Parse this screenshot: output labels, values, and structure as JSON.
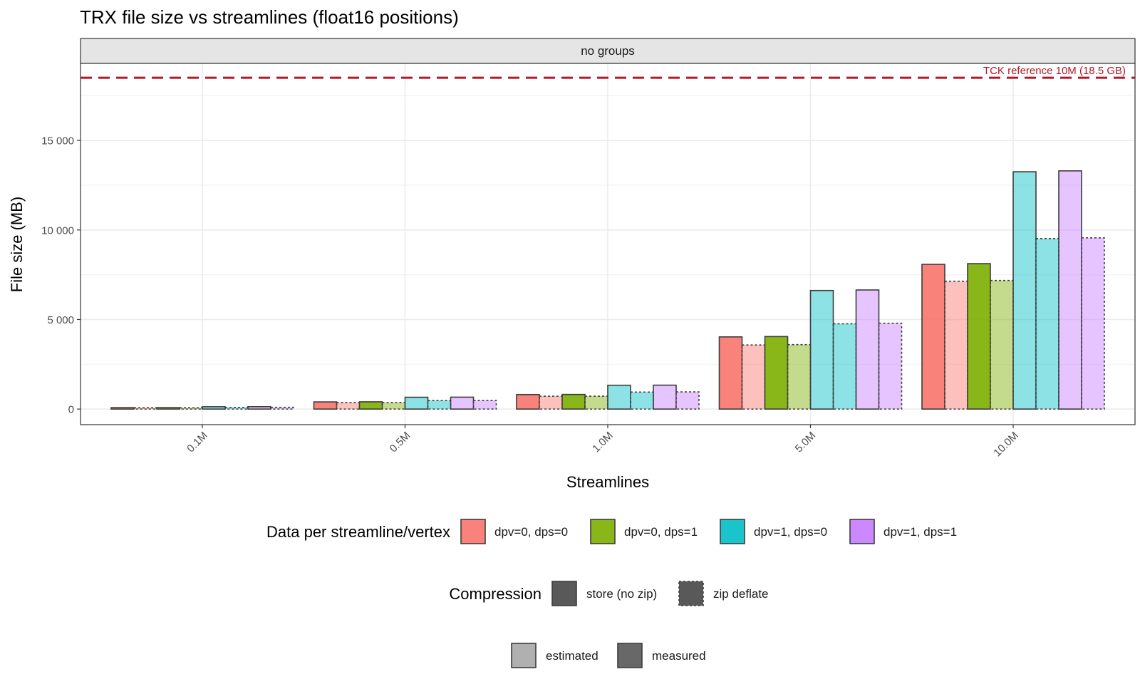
{
  "chart_data": {
    "type": "bar",
    "title": "TRX file size vs streamlines (float16 positions)",
    "facet_label": "no groups",
    "xlabel": "Streamlines",
    "ylabel": "File size (MB)",
    "categories": [
      "0.1M",
      "0.5M",
      "1.0M",
      "5.0M",
      "10.0M"
    ],
    "ylim": [
      -870,
      19300
    ],
    "y_ticks": [
      {
        "value": 0,
        "label": "0"
      },
      {
        "value": 5000,
        "label": "5 000"
      },
      {
        "value": 10000,
        "label": "10 000"
      },
      {
        "value": 15000,
        "label": "15 000"
      }
    ],
    "grid": true,
    "reference_line": {
      "value": 18500,
      "label": "TCK reference 10M (18.5 GB)",
      "color": "#b2182b"
    },
    "series": [
      {
        "fill": "dpv=0, dps=0",
        "compression": "store (no zip)",
        "status": "measured",
        "values": [
          80,
          400,
          810,
          4030,
          8080
        ]
      },
      {
        "fill": "dpv=0, dps=0",
        "compression": "zip deflate",
        "status": "estimated",
        "values": [
          72,
          360,
          720,
          3580,
          7140
        ]
      },
      {
        "fill": "dpv=0, dps=1",
        "compression": "store (no zip)",
        "status": "measured",
        "values": [
          81,
          405,
          815,
          4050,
          8120
        ]
      },
      {
        "fill": "dpv=0, dps=1",
        "compression": "zip deflate",
        "status": "estimated",
        "values": [
          72,
          360,
          720,
          3600,
          7180
        ]
      },
      {
        "fill": "dpv=1, dps=0",
        "compression": "store (no zip)",
        "status": "estimated",
        "values": [
          130,
          660,
          1330,
          6620,
          13250
        ]
      },
      {
        "fill": "dpv=1, dps=0",
        "compression": "zip deflate",
        "status": "estimated",
        "values": [
          95,
          475,
          950,
          4760,
          9520
        ]
      },
      {
        "fill": "dpv=1, dps=1",
        "compression": "store (no zip)",
        "status": "estimated",
        "values": [
          132,
          665,
          1335,
          6650,
          13300
        ]
      },
      {
        "fill": "dpv=1, dps=1",
        "compression": "zip deflate",
        "status": "estimated",
        "values": [
          96,
          480,
          960,
          4790,
          9560
        ]
      }
    ],
    "colors": {
      "dpv=0, dps=0": "#F8766D",
      "dpv=0, dps=1": "#7CAE00",
      "dpv=1, dps=0": "#00BFC4",
      "dpv=1, dps=1": "#C77CFF"
    },
    "legend_placement": "bottom",
    "legend": {
      "fill": {
        "title": "Data per streamline/vertex",
        "items": [
          "dpv=0, dps=0",
          "dpv=0, dps=1",
          "dpv=1, dps=0",
          "dpv=1, dps=1"
        ]
      },
      "compression": {
        "title": "Compression",
        "items": [
          "store (no zip)",
          "zip deflate"
        ]
      },
      "status": {
        "title": "",
        "items": [
          "estimated",
          "measured"
        ]
      }
    }
  }
}
